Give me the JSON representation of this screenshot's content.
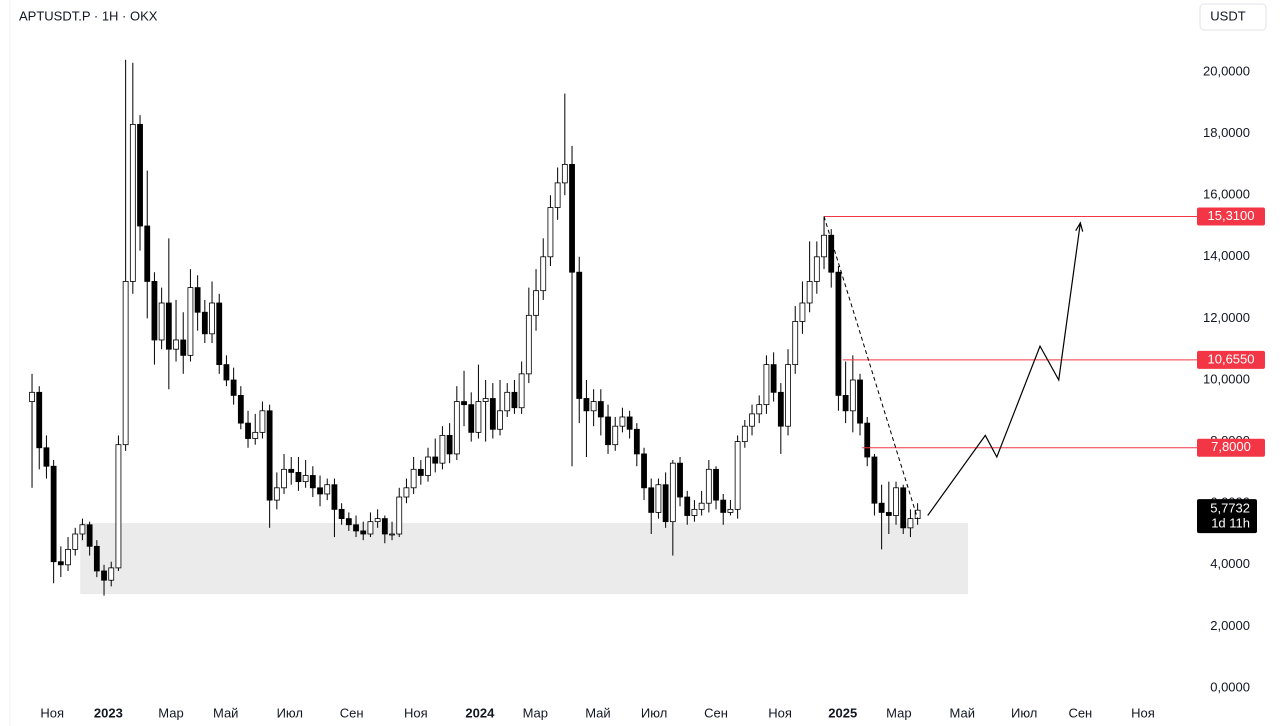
{
  "chart_data": {
    "type": "candlestick",
    "title": "APTUSDT.P · 1H · OKX",
    "unit_button": "USDT",
    "up_color": "#ffffff",
    "down_color": "#000000",
    "xlim": [
      -3.06,
      160.83
    ],
    "ylim": [
      -1.234,
      22.338
    ],
    "xticks": [
      {
        "value": 2.8,
        "label": "Ноя"
      },
      {
        "value": 10.6,
        "label": "2023"
      },
      {
        "value": 19.3,
        "label": "Мар"
      },
      {
        "value": 26.9,
        "label": "Май"
      },
      {
        "value": 35.8,
        "label": "Июл"
      },
      {
        "value": 44.4,
        "label": "Сен"
      },
      {
        "value": 53.3,
        "label": "Ноя"
      },
      {
        "value": 62.2,
        "label": "2024"
      },
      {
        "value": 69.9,
        "label": "Мар"
      },
      {
        "value": 78.6,
        "label": "Май"
      },
      {
        "value": 86.4,
        "label": "Июл"
      },
      {
        "value": 95,
        "label": "Сен"
      },
      {
        "value": 103.9,
        "label": "Ноя"
      },
      {
        "value": 112.6,
        "label": "2025"
      },
      {
        "value": 120.4,
        "label": "Мар"
      },
      {
        "value": 129.2,
        "label": "Май"
      },
      {
        "value": 137.8,
        "label": "Июл"
      },
      {
        "value": 145.6,
        "label": "Сен"
      },
      {
        "value": 154.3,
        "label": "Ноя"
      }
    ],
    "yticks": [
      {
        "value": 0,
        "label": "0,0000"
      },
      {
        "value": 2,
        "label": "2,0000"
      },
      {
        "value": 4,
        "label": "4,0000"
      },
      {
        "value": 6,
        "label": "6,0000"
      },
      {
        "value": 8,
        "label": "8,0000"
      },
      {
        "value": 10,
        "label": "10,0000"
      },
      {
        "value": 12,
        "label": "12,0000"
      },
      {
        "value": 14,
        "label": "14,0000"
      },
      {
        "value": 16,
        "label": "16,0000"
      },
      {
        "value": 18,
        "label": "18,0000"
      },
      {
        "value": 20,
        "label": "20,0000"
      }
    ],
    "x": [
      0,
      1,
      2,
      3,
      4,
      5,
      6,
      7,
      8,
      9,
      10,
      11,
      12,
      13,
      14,
      15,
      16,
      17,
      18,
      19,
      20,
      21,
      22,
      23,
      24,
      25,
      26,
      27,
      28,
      29,
      30,
      31,
      32,
      33,
      34,
      35,
      36,
      37,
      38,
      39,
      40,
      41,
      42,
      43,
      44,
      45,
      46,
      47,
      48,
      49,
      50,
      51,
      52,
      53,
      54,
      55,
      56,
      57,
      58,
      59,
      60,
      61,
      62,
      63,
      64,
      65,
      66,
      67,
      68,
      69,
      70,
      71,
      72,
      73,
      74,
      75,
      76,
      77,
      78,
      79,
      80,
      81,
      82,
      83,
      84,
      85,
      86,
      87,
      88,
      89,
      90,
      91,
      92,
      93,
      94,
      95,
      96,
      97,
      98,
      99,
      100,
      101,
      102,
      103,
      104,
      105,
      106,
      107,
      108,
      109,
      110,
      111,
      112,
      113,
      114,
      115,
      116,
      117,
      118,
      119,
      120,
      121,
      122,
      123
    ],
    "open": [
      9.3,
      9.6,
      7.8,
      7.2,
      4.1,
      4.0,
      4.5,
      5.0,
      5.3,
      4.6,
      3.8,
      3.5,
      3.9,
      7.9,
      13.2,
      18.3,
      15.0,
      13.2,
      11.3,
      12.5,
      11.0,
      11.3,
      10.8,
      13.0,
      12.2,
      11.5,
      12.5,
      10.5,
      10.0,
      9.5,
      8.6,
      8.1,
      8.3,
      9.0,
      6.1,
      6.5,
      7.1,
      7.0,
      6.7,
      6.9,
      6.5,
      6.3,
      6.6,
      5.8,
      5.5,
      5.3,
      5.1,
      5.0,
      5.4,
      5.5,
      5.0,
      5.0,
      6.2,
      6.5,
      7.1,
      6.9,
      7.5,
      7.3,
      8.2,
      7.6,
      9.3,
      9.2,
      8.3,
      9.3,
      9.4,
      8.4,
      9.0,
      9.6,
      9.1,
      10.2,
      12.1,
      12.9,
      14.0,
      15.6,
      16.4,
      17.0,
      13.5,
      9.4,
      9.0,
      9.3,
      8.8,
      7.9,
      8.5,
      8.8,
      8.4,
      7.6,
      6.5,
      5.7,
      6.6,
      5.4,
      7.3,
      6.2,
      5.6,
      5.8,
      6.0,
      7.1,
      6.1,
      5.7,
      5.8,
      8.0,
      8.5,
      8.9,
      9.2,
      10.5,
      9.6,
      8.5,
      10.5,
      11.9,
      12.5,
      13.2,
      14.0,
      14.7,
      13.5,
      9.5,
      9.0,
      10.0,
      8.6,
      7.5,
      6.0,
      5.7,
      5.6,
      6.5,
      5.2,
      5.5
    ],
    "high": [
      10.2,
      9.8,
      8.2,
      7.4,
      4.6,
      4.9,
      5.2,
      5.5,
      5.4,
      4.8,
      4.0,
      4.1,
      8.2,
      20.4,
      20.3,
      18.6,
      16.8,
      13.5,
      13.0,
      14.6,
      12.6,
      12.2,
      13.6,
      13.4,
      12.6,
      13.2,
      12.8,
      10.8,
      10.4,
      9.8,
      9.0,
      8.9,
      9.3,
      9.2,
      7.0,
      7.6,
      7.5,
      7.5,
      7.4,
      7.2,
      6.9,
      6.8,
      6.8,
      6.0,
      5.7,
      5.6,
      5.4,
      5.7,
      5.8,
      5.6,
      5.4,
      6.5,
      6.8,
      7.5,
      7.4,
      7.8,
      8.1,
      8.5,
      8.6,
      9.8,
      10.3,
      9.6,
      10.5,
      10.0,
      9.9,
      10.0,
      9.9,
      10.0,
      10.6,
      13.0,
      13.6,
      14.6,
      16.0,
      16.9,
      19.3,
      17.6,
      14.0,
      10.0,
      9.7,
      9.7,
      9.2,
      8.8,
      9.1,
      9.0,
      8.6,
      7.8,
      6.8,
      6.8,
      7.0,
      7.4,
      7.5,
      6.4,
      6.1,
      6.4,
      7.4,
      7.2,
      6.3,
      6.1,
      8.2,
      8.7,
      9.2,
      9.5,
      10.8,
      10.9,
      9.9,
      11.0,
      12.4,
      13.2,
      14.5,
      14.5,
      15.31,
      14.9,
      13.7,
      10.6,
      10.8,
      10.2,
      8.8,
      7.6,
      6.6,
      6.7,
      6.7,
      6.6,
      5.8,
      6.0
    ],
    "low": [
      6.5,
      7.1,
      6.8,
      3.4,
      3.6,
      3.8,
      4.3,
      4.8,
      4.3,
      3.6,
      3.0,
      3.3,
      3.8,
      7.7,
      12.8,
      14.2,
      12.0,
      10.5,
      11.0,
      9.7,
      10.6,
      10.2,
      10.6,
      11.6,
      11.2,
      11.2,
      10.2,
      9.8,
      9.2,
      8.4,
      7.8,
      7.9,
      8.1,
      5.2,
      5.8,
      6.3,
      6.6,
      6.4,
      6.5,
      6.2,
      5.9,
      6.1,
      4.9,
      5.3,
      5.1,
      4.9,
      4.8,
      4.9,
      5.2,
      4.7,
      4.8,
      4.9,
      6.0,
      6.3,
      6.6,
      6.7,
      7.0,
      7.1,
      7.3,
      7.4,
      8.5,
      8.0,
      8.1,
      8.0,
      8.1,
      8.2,
      8.8,
      8.9,
      8.9,
      9.9,
      11.6,
      12.6,
      13.7,
      15.2,
      16.0,
      7.2,
      8.6,
      7.5,
      8.5,
      8.2,
      7.6,
      7.7,
      8.3,
      8.1,
      7.2,
      6.1,
      5.0,
      5.5,
      5.2,
      4.3,
      5.9,
      5.3,
      5.4,
      5.6,
      5.7,
      5.8,
      5.3,
      5.6,
      5.5,
      7.8,
      8.2,
      8.6,
      8.9,
      9.3,
      7.6,
      8.2,
      10.2,
      11.5,
      12.2,
      12.8,
      13.6,
      13.0,
      9.0,
      8.6,
      8.3,
      8.2,
      7.2,
      5.6,
      4.5,
      5.0,
      5.3,
      5.0,
      4.9,
      5.3
    ],
    "close": [
      9.6,
      7.8,
      7.2,
      4.1,
      4.0,
      4.5,
      5.0,
      5.3,
      4.6,
      3.8,
      3.5,
      3.9,
      7.9,
      13.2,
      18.3,
      15.0,
      13.2,
      11.3,
      12.5,
      11.0,
      11.3,
      10.8,
      13.0,
      12.2,
      11.5,
      12.5,
      10.5,
      10.0,
      9.5,
      8.6,
      8.1,
      8.3,
      9.0,
      6.1,
      6.5,
      7.1,
      7.0,
      6.7,
      6.9,
      6.5,
      6.3,
      6.6,
      5.8,
      5.5,
      5.3,
      5.1,
      5.0,
      5.4,
      5.5,
      5.0,
      5.0,
      6.2,
      6.5,
      7.1,
      6.9,
      7.5,
      7.3,
      8.2,
      7.6,
      9.3,
      9.2,
      8.3,
      9.3,
      9.4,
      8.4,
      9.0,
      9.6,
      9.1,
      10.2,
      12.1,
      12.9,
      14.0,
      15.6,
      16.4,
      17.0,
      13.5,
      9.4,
      9.0,
      9.3,
      8.8,
      7.9,
      8.5,
      8.8,
      8.4,
      7.6,
      6.5,
      5.7,
      6.6,
      5.4,
      7.3,
      6.2,
      5.6,
      5.8,
      6.0,
      7.1,
      6.1,
      5.7,
      5.8,
      8.0,
      8.5,
      8.9,
      9.2,
      10.5,
      9.6,
      8.5,
      10.5,
      11.9,
      12.5,
      13.2,
      14.0,
      14.7,
      13.5,
      9.5,
      9.0,
      10.0,
      8.6,
      7.5,
      6.0,
      5.7,
      5.6,
      6.5,
      5.2,
      5.5,
      5.7732
    ],
    "levels": [
      {
        "value": 15.31,
        "label": "15,3100",
        "start": 110
      },
      {
        "value": 10.655,
        "label": "10,6550",
        "start": 112.6
      },
      {
        "value": 7.8,
        "label": "7,8000",
        "start": 115.3
      }
    ],
    "level_color": "#f23645",
    "zone": {
      "x": [
        6.7,
        130
      ],
      "y": [
        3.05,
        5.36
      ],
      "color": "#ebebeb"
    },
    "trendline": {
      "x": [
        110,
        123
      ],
      "y": [
        15.31,
        5.5
      ]
    },
    "projection": {
      "x": [
        124.4,
        132.4,
        134.0,
        140.0,
        142.6,
        145.6
      ],
      "y": [
        5.6,
        8.2,
        7.5,
        11.1,
        10.0,
        15.1
      ]
    },
    "last_price": {
      "value": 5.7732,
      "label": "5,7732",
      "countdown": "1d 11h"
    }
  }
}
